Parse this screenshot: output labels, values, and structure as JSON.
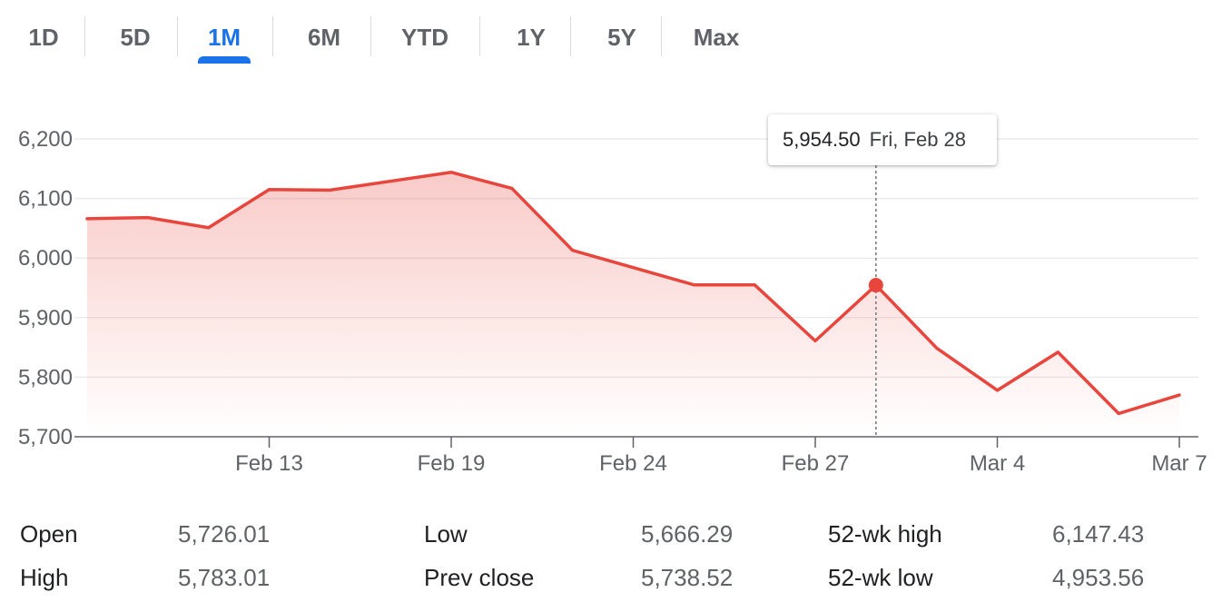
{
  "tabs": [
    {
      "label": "1D",
      "active": false
    },
    {
      "label": "5D",
      "active": false
    },
    {
      "label": "1M",
      "active": true
    },
    {
      "label": "6M",
      "active": false
    },
    {
      "label": "YTD",
      "active": false
    },
    {
      "label": "1Y",
      "active": false
    },
    {
      "label": "5Y",
      "active": false
    },
    {
      "label": "Max",
      "active": false
    }
  ],
  "colors": {
    "line": "#e8453c",
    "accent": "#1a73e8",
    "grid": "#ececec",
    "text_muted": "#5f6368"
  },
  "tooltip": {
    "value": "5,954.50",
    "date": "Fri, Feb 28"
  },
  "chart_data": {
    "type": "area",
    "series": [
      {
        "values": [
          6066,
          6068,
          6051,
          6115,
          6114,
          6129,
          6144,
          6117,
          6013,
          5984,
          5955,
          5955,
          5861,
          5954.5,
          5849,
          5778,
          5842,
          5739,
          5770
        ]
      }
    ],
    "x_tick_labels": [
      "Feb 13",
      "Feb 19",
      "Feb 24",
      "Feb 27",
      "Mar 4",
      "Mar 7"
    ],
    "x_tick_points": [
      3,
      6,
      9,
      12,
      15,
      18
    ],
    "y_ticks": [
      5700,
      5800,
      5900,
      6000,
      6100,
      6200
    ],
    "y_tick_labels": [
      "5,700",
      "5,800",
      "5,900",
      "6,000",
      "6,100",
      "6,200"
    ],
    "ylim": [
      5700,
      6200
    ],
    "highlight_index": 13,
    "grid": true
  },
  "stats": [
    {
      "label": "Open",
      "value": "5,726.01"
    },
    {
      "label": "High",
      "value": "5,783.01"
    },
    {
      "label": "Low",
      "value": "5,666.29"
    },
    {
      "label": "Prev close",
      "value": "5,738.52"
    },
    {
      "label": "52-wk high",
      "value": "6,147.43"
    },
    {
      "label": "52-wk low",
      "value": "4,953.56"
    }
  ]
}
